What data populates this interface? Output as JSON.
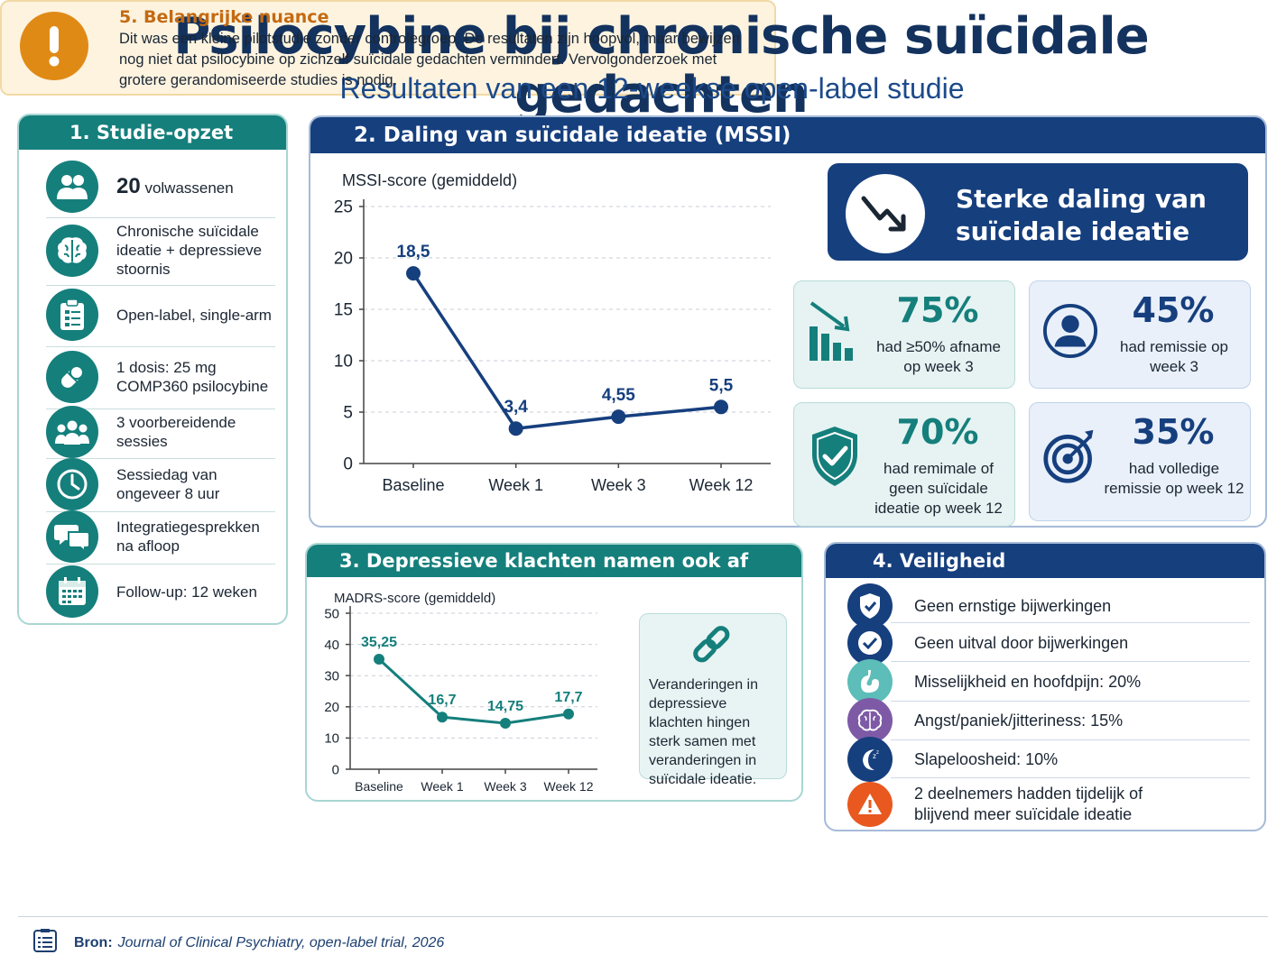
{
  "title": "Psilocybine bij chronische suïcidale gedachten",
  "subtitle": "Resultaten van een 12-weekse open-label studie",
  "study_design": {
    "heading": "1. Studie-opzet",
    "participants_number": "20",
    "participants_label": "volwassenen",
    "items": [
      {
        "icon": "brain-icon",
        "text": "Chronische suïcidale ideatie + depressieve stoornis"
      },
      {
        "icon": "clipboard-icon",
        "text": "Open-label, single-arm"
      },
      {
        "icon": "pill-icon",
        "text": "1 dosis: 25 mg COMP360 psilocybine"
      },
      {
        "icon": "group-icon",
        "text": "3 voorbereidende sessies"
      },
      {
        "icon": "clock-icon",
        "text": "Sessiedag van ongeveer 8 uur"
      },
      {
        "icon": "chat-icon",
        "text": "Integratiegesprekken na afloop"
      },
      {
        "icon": "calendar-icon",
        "text": "Follow-up: 12 weken"
      }
    ]
  },
  "mssi": {
    "heading": "2. Daling van suïcidale ideatie (MSSI)",
    "callout": "Sterke daling van suïcidale ideatie",
    "stats": [
      {
        "value": "75%",
        "label": "had ≥50% afname op week 3",
        "icon": "bar-decline-icon"
      },
      {
        "value": "45%",
        "label": "had remissie op week 3",
        "icon": "person-icon"
      },
      {
        "value": "70%",
        "label": "had remimale of geen suïcidale ideatie op week 12",
        "icon": "shield-check-icon"
      },
      {
        "value": "35%",
        "label": "had volledige remissie op week 12",
        "icon": "target-icon"
      }
    ]
  },
  "depression": {
    "heading": "3. Depressieve klachten namen ook af",
    "note": "Veranderingen in depressieve klachten hingen sterk samen met veranderingen in suïcidale ideatie."
  },
  "safety": {
    "heading": "4. Veiligheid",
    "items": [
      {
        "icon": "shield-check-icon",
        "text": "Geen ernstige bijwerkingen"
      },
      {
        "icon": "check-circle-icon",
        "text": "Geen uitval door bijwerkingen"
      },
      {
        "icon": "stomach-icon",
        "text": "Misselijkheid en hoofdpijn: 20%"
      },
      {
        "icon": "brain-icon",
        "text": "Angst/paniek/jitteriness: 15%"
      },
      {
        "icon": "moon-icon",
        "text": "Slapeloosheid: 10%"
      },
      {
        "icon": "warning-icon",
        "text": "2 deelnemers hadden tijdelijk of blijvend meer suïcidale ideatie"
      }
    ]
  },
  "nuance": {
    "heading": "5. Belangrijke nuance",
    "text": "Dit was een kleine pilotstudie zonder controlegroep. De resultaten zijn hoopvol, maar bewijzen nog niet dat psilocybine op zichzelf suïcidale gedachten vermindert. Vervolgonderzoek met grotere gerandomiseerde studies is nodig."
  },
  "footer": {
    "label": "Bron:",
    "source": "Journal of Clinical Psychiatry, open-label trial, 2026"
  },
  "colors": {
    "navy": "#163f7e",
    "teal": "#157f7c",
    "orange": "#e08a16"
  },
  "chart_data": [
    {
      "type": "line",
      "title": "",
      "ylabel": "MSSI-score (gemiddeld)",
      "xlabel": "",
      "categories": [
        "Baseline",
        "Week 1",
        "Week 3",
        "Week 12"
      ],
      "values": [
        18.5,
        3.4,
        4.55,
        5.5
      ],
      "data_labels": [
        "18,5",
        "3,4",
        "4,55",
        "5,5"
      ],
      "ylim": [
        0,
        25
      ],
      "yticks": [
        0,
        5,
        10,
        15,
        20,
        25
      ],
      "grid": "horizontal dashed",
      "color": "#163f7e"
    },
    {
      "type": "line",
      "title": "",
      "ylabel": "MADRS-score (gemiddeld)",
      "xlabel": "",
      "categories": [
        "Baseline",
        "Week 1",
        "Week 3",
        "Week 12"
      ],
      "values": [
        35.25,
        16.7,
        14.75,
        17.7
      ],
      "data_labels": [
        "35,25",
        "16,7",
        "14,75",
        "17,7"
      ],
      "ylim": [
        0,
        50
      ],
      "yticks": [
        0,
        10,
        20,
        30,
        40,
        50
      ],
      "grid": "horizontal dashed",
      "color": "#157f7c"
    }
  ]
}
